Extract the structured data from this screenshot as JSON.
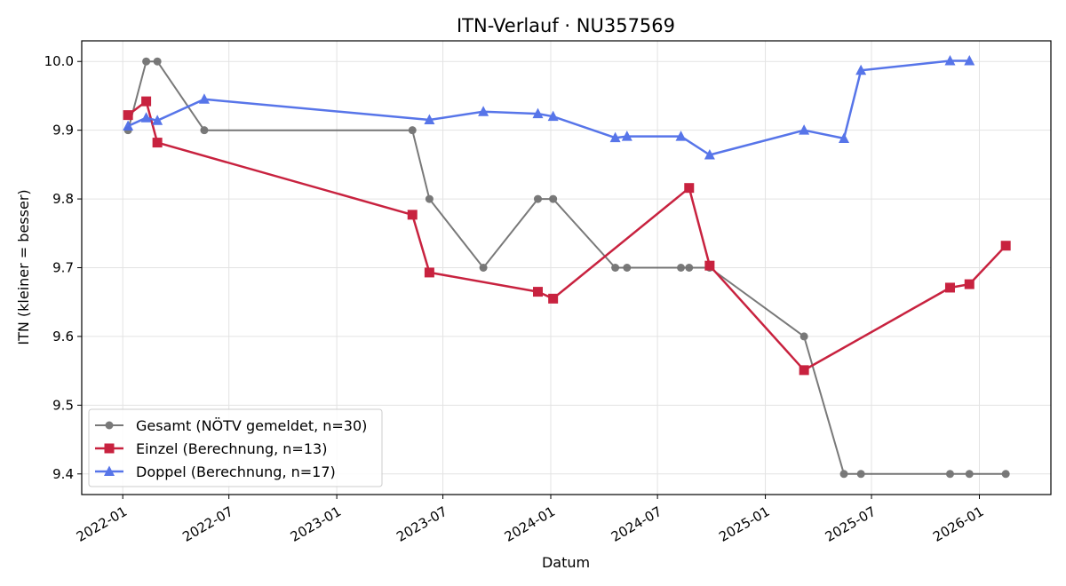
{
  "chart_data": {
    "type": "line",
    "title": "ITN-Verlauf · NU357569",
    "xlabel": "Datum",
    "ylabel": "ITN  (kleiner = besser)",
    "x_tick_labels": [
      "2022-01",
      "2022-07",
      "2023-01",
      "2023-07",
      "2024-01",
      "2024-07",
      "2025-01",
      "2025-07",
      "2026-01"
    ],
    "y_tick_labels": [
      "9.4",
      "9.5",
      "9.6",
      "9.7",
      "9.8",
      "9.9",
      "10.0"
    ],
    "ylim": [
      9.37,
      10.03
    ],
    "xlim": [
      "2021-10-23",
      "2026-05-03"
    ],
    "grid": true,
    "legend_position": "lower-left",
    "series": [
      {
        "name": "Gesamt (NÖTV gemeldet, n=30)",
        "color": "#4d4d4d",
        "marker": "circle",
        "points": [
          [
            "2022-01-10",
            9.9
          ],
          [
            "2022-02-10",
            10.0
          ],
          [
            "2022-03-01",
            10.0
          ],
          [
            "2022-05-20",
            9.9
          ],
          [
            "2023-05-10",
            9.9
          ],
          [
            "2023-06-08",
            9.8
          ],
          [
            "2023-09-08",
            9.7
          ],
          [
            "2023-12-10",
            9.8
          ],
          [
            "2024-01-05",
            9.8
          ],
          [
            "2024-04-20",
            9.7
          ],
          [
            "2024-05-10",
            9.7
          ],
          [
            "2024-08-10",
            9.7
          ],
          [
            "2024-08-24",
            9.7
          ],
          [
            "2024-09-28",
            9.7
          ],
          [
            "2025-03-08",
            9.6
          ],
          [
            "2025-05-15",
            9.4
          ],
          [
            "2025-06-13",
            9.4
          ],
          [
            "2025-11-12",
            9.4
          ],
          [
            "2025-12-15",
            9.4
          ],
          [
            "2026-02-15",
            9.4
          ]
        ]
      },
      {
        "name": "Einzel (Berechnung, n=13)",
        "color": "#c8223f",
        "marker": "square",
        "points": [
          [
            "2022-01-10",
            9.922
          ],
          [
            "2022-02-10",
            9.942
          ],
          [
            "2022-03-01",
            9.882
          ],
          [
            "2023-05-10",
            9.777
          ],
          [
            "2023-06-08",
            9.693
          ],
          [
            "2023-12-10",
            9.665
          ],
          [
            "2024-01-05",
            9.655
          ],
          [
            "2024-08-24",
            9.816
          ],
          [
            "2024-09-28",
            9.703
          ],
          [
            "2025-03-08",
            9.551
          ],
          [
            "2025-11-12",
            9.671
          ],
          [
            "2025-12-15",
            9.676
          ],
          [
            "2026-02-15",
            9.732
          ]
        ]
      },
      {
        "name": "Doppel (Berechnung, n=17)",
        "color": "#4f6ee8",
        "marker": "triangle",
        "points": [
          [
            "2022-01-10",
            9.906
          ],
          [
            "2022-02-10",
            9.918
          ],
          [
            "2022-03-01",
            9.914
          ],
          [
            "2022-05-20",
            9.945
          ],
          [
            "2023-06-08",
            9.915
          ],
          [
            "2023-09-08",
            9.927
          ],
          [
            "2023-12-10",
            9.924
          ],
          [
            "2024-01-05",
            9.92
          ],
          [
            "2024-04-20",
            9.889
          ],
          [
            "2024-05-10",
            9.891
          ],
          [
            "2024-08-10",
            9.891
          ],
          [
            "2024-09-28",
            9.864
          ],
          [
            "2025-03-08",
            9.9
          ],
          [
            "2025-05-15",
            9.888
          ],
          [
            "2025-06-13",
            9.987
          ],
          [
            "2025-11-12",
            10.001
          ],
          [
            "2025-12-15",
            10.001
          ]
        ]
      }
    ]
  }
}
